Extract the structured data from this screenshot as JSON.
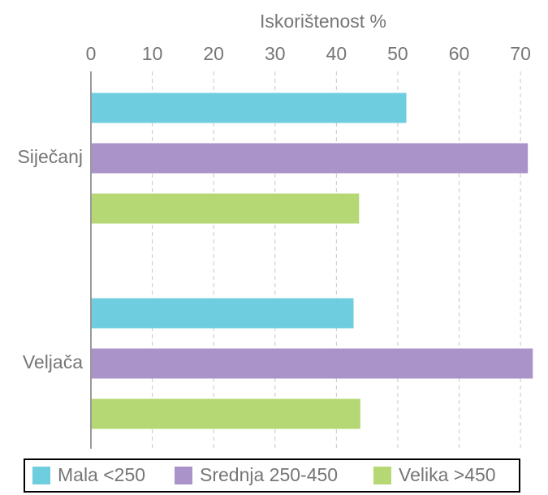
{
  "chart_data": {
    "type": "bar",
    "orientation": "horizontal",
    "x_label": "Iskorištenost %",
    "categories": [
      "Siječanj",
      "Veljača"
    ],
    "series": [
      {
        "name": "Mala <250",
        "color": "#6fcde0",
        "values": [
          51.4,
          42.8
        ]
      },
      {
        "name": "Srednja 250-450",
        "color": "#a993c8",
        "values": [
          71.2,
          72.0
        ]
      },
      {
        "name": "Velika >450",
        "color": "#b5d774",
        "values": [
          43.7,
          43.9
        ]
      }
    ],
    "xlim": [
      0,
      72.5
    ],
    "xticks": [
      0,
      10,
      20,
      30,
      40,
      50,
      60,
      70
    ],
    "grid": true
  }
}
